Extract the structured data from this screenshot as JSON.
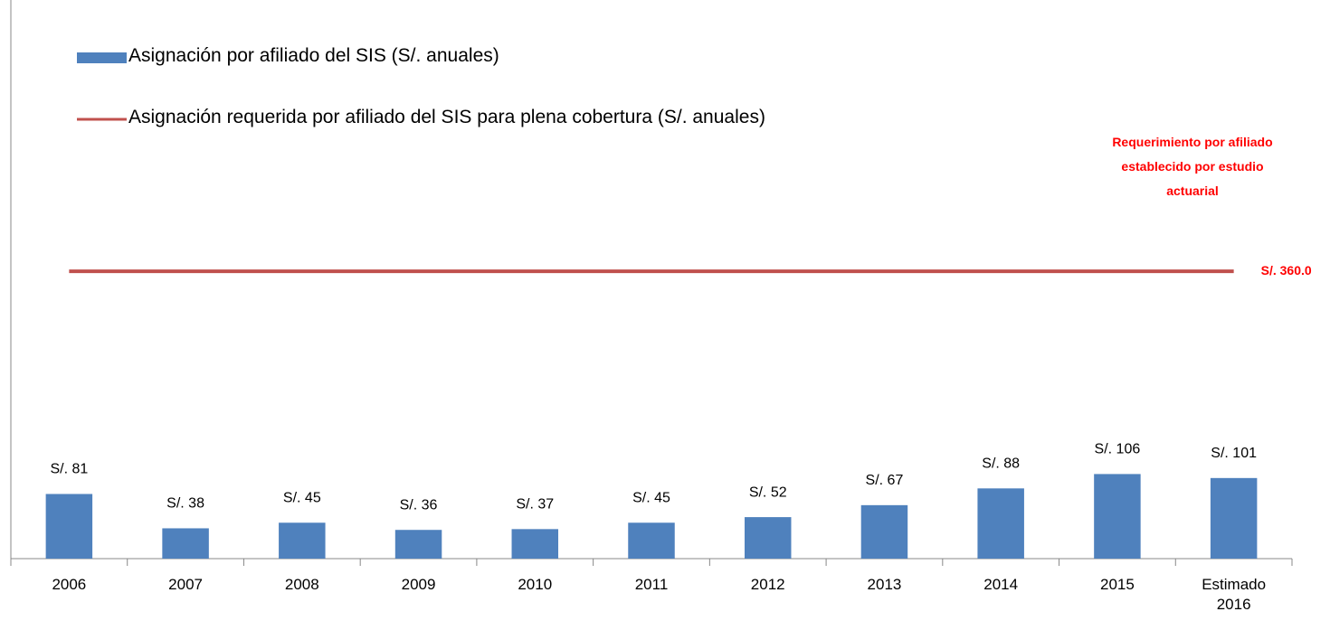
{
  "chart_data": {
    "type": "bar_line",
    "categories": [
      "2006",
      "2007",
      "2008",
      "2009",
      "2010",
      "2011",
      "2012",
      "2013",
      "2014",
      "2015",
      "Estimado 2016"
    ],
    "series": [
      {
        "name": "Asignación por afiliado del SIS (S/. anuales)",
        "type": "bar",
        "color": "#4f81bd",
        "values": [
          81,
          38,
          45,
          36,
          37,
          45,
          52,
          67,
          88,
          106,
          101
        ],
        "value_labels": [
          "S/. 81",
          "S/. 38",
          "S/. 45",
          "S/. 36",
          "S/. 37",
          "S/. 45",
          "S/. 52",
          "S/. 67",
          "S/. 88",
          "S/. 106",
          "S/. 101"
        ]
      },
      {
        "name": "Asignación requerida por afiliado del SIS para plena cobertura (S/. anuales)",
        "type": "line",
        "color": "#c0504d",
        "values": [
          360,
          360,
          360,
          360,
          360,
          360,
          360,
          360,
          360,
          360,
          360
        ],
        "value_labels": [
          null,
          null,
          null,
          null,
          null,
          null,
          null,
          null,
          null,
          null,
          "S/. 360.0"
        ]
      }
    ],
    "annotation": "Requerimiento por afiliado establecido por estudio actuarial",
    "ylim": [
      0,
      700
    ],
    "legend": "top-left"
  }
}
